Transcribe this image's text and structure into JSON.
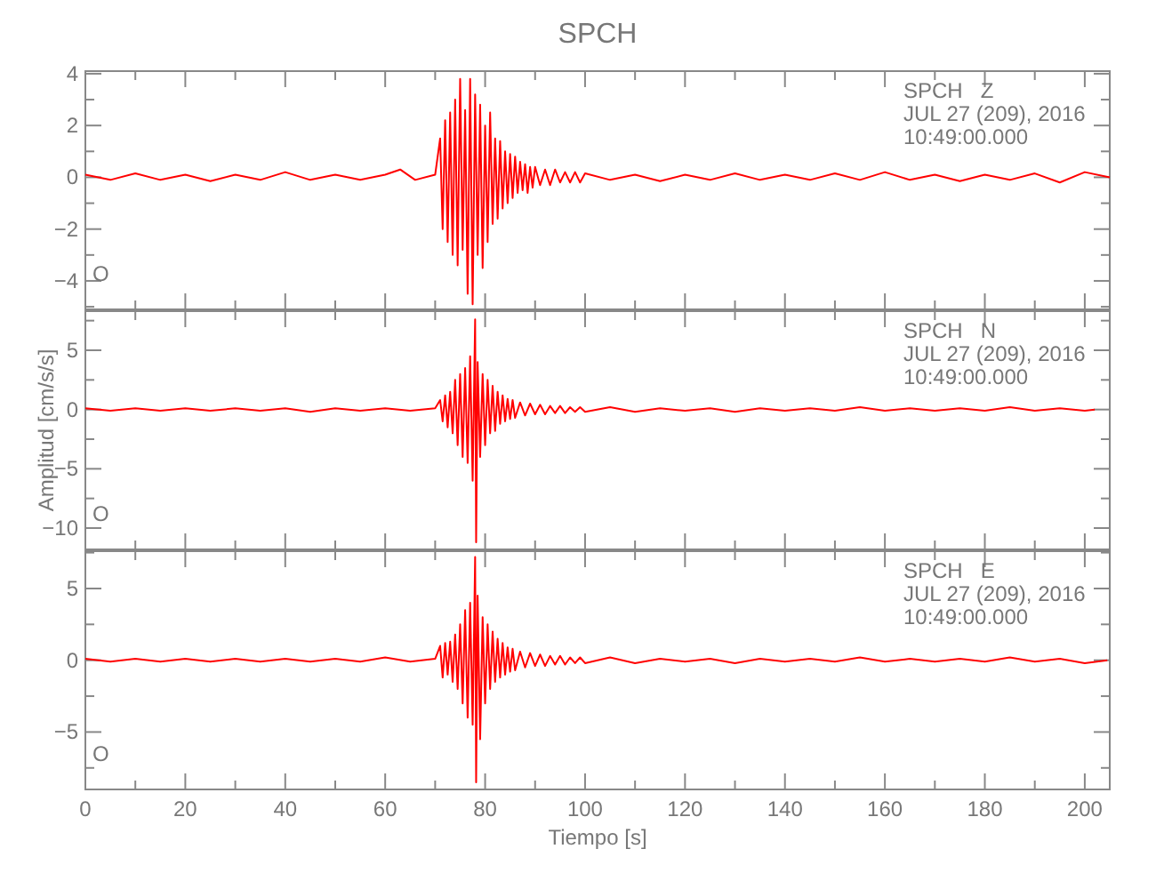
{
  "chart_data": [
    {
      "type": "line",
      "title": "SPCH",
      "xlim": [
        0,
        205
      ],
      "ylim": [
        -5.1,
        4.1
      ],
      "tick_labels": "y",
      "grid": false,
      "xticks": [
        0,
        {
          "value": 10,
          "label": null
        },
        20,
        {
          "value": 30,
          "label": null
        },
        40,
        {
          "value": 50,
          "label": null
        },
        60,
        {
          "value": 70,
          "label": null
        },
        80,
        {
          "value": 90,
          "label": null
        },
        100,
        {
          "value": 110,
          "label": null
        },
        120,
        {
          "value": 130,
          "label": null
        },
        140,
        {
          "value": 150,
          "label": null
        },
        160,
        {
          "value": 170,
          "label": null
        },
        180,
        {
          "value": 190,
          "label": null
        },
        200
      ],
      "yticks": [
        {
          "value": -5,
          "label": null
        },
        -4,
        {
          "value": -3,
          "label": null
        },
        -2,
        {
          "value": -1,
          "label": null
        },
        0,
        {
          "value": 1,
          "label": null
        },
        2,
        {
          "value": 3,
          "label": null
        },
        4
      ],
      "annotations": [
        "SPCH   Z",
        "JUL 27 (209), 2016",
        "10:49:00.000",
        "O"
      ],
      "series": [
        {
          "color": "#ff0000",
          "x": [
            0,
            5,
            10,
            15,
            20,
            25,
            30,
            35,
            40,
            45,
            50,
            55,
            60,
            63,
            66,
            70,
            71,
            71.5,
            72,
            72.5,
            73,
            73.5,
            74,
            74.5,
            75,
            75.5,
            76,
            76.5,
            77,
            77.5,
            78,
            78.5,
            79,
            79.5,
            80,
            80.5,
            81,
            81.5,
            82,
            82.5,
            83,
            83.5,
            84,
            84.5,
            85,
            85.5,
            86,
            86.5,
            87,
            87.5,
            88,
            88.5,
            89,
            89.5,
            90,
            91,
            92,
            93,
            94,
            95,
            96,
            97,
            98,
            99,
            100,
            105,
            110,
            115,
            120,
            125,
            130,
            135,
            140,
            145,
            150,
            155,
            160,
            165,
            170,
            175,
            180,
            185,
            190,
            195,
            200,
            205
          ],
          "values": [
            0.1,
            -0.1,
            0.15,
            -0.1,
            0.1,
            -0.15,
            0.1,
            -0.1,
            0.2,
            -0.1,
            0.1,
            -0.1,
            0.1,
            0.3,
            -0.1,
            0.1,
            1.5,
            -2.0,
            2.2,
            -2.5,
            2.5,
            -3.0,
            3.0,
            -3.4,
            3.8,
            -2.8,
            2.6,
            -4.5,
            3.8,
            -4.9,
            3.2,
            -3.0,
            2.8,
            -3.5,
            2.0,
            -2.5,
            2.5,
            -1.8,
            1.5,
            -1.6,
            1.4,
            -1.2,
            1.0,
            -1.0,
            0.9,
            -0.8,
            0.8,
            -0.6,
            0.6,
            -0.5,
            0.5,
            -0.6,
            0.4,
            -0.4,
            0.4,
            -0.3,
            0.3,
            -0.3,
            0.3,
            -0.2,
            0.2,
            -0.2,
            0.2,
            -0.2,
            0.15,
            -0.1,
            0.1,
            -0.15,
            0.1,
            -0.1,
            0.15,
            -0.1,
            0.1,
            -0.1,
            0.15,
            -0.1,
            0.2,
            -0.1,
            0.1,
            -0.15,
            0.1,
            -0.1,
            0.15,
            -0.2,
            0.2,
            0
          ]
        }
      ]
    },
    {
      "type": "line",
      "ylabel": "Amplitud [cm/s/s]",
      "xlim": [
        0,
        205
      ],
      "ylim": [
        -11.8,
        8.3
      ],
      "tick_labels": "y",
      "grid": false,
      "xticks": [
        0,
        {
          "value": 10,
          "label": null
        },
        20,
        {
          "value": 30,
          "label": null
        },
        40,
        {
          "value": 50,
          "label": null
        },
        60,
        {
          "value": 70,
          "label": null
        },
        80,
        {
          "value": 90,
          "label": null
        },
        100,
        {
          "value": 110,
          "label": null
        },
        120,
        {
          "value": 130,
          "label": null
        },
        140,
        {
          "value": 150,
          "label": null
        },
        160,
        {
          "value": 170,
          "label": null
        },
        180,
        {
          "value": 190,
          "label": null
        },
        200
      ],
      "yticks": [
        -10,
        {
          "value": -7.5,
          "label": null
        },
        -5,
        {
          "value": -2.5,
          "label": null
        },
        0,
        {
          "value": 2.5,
          "label": null
        },
        5,
        {
          "value": 7.5,
          "label": null
        }
      ],
      "annotations": [
        "SPCH   N",
        "JUL 27 (209), 2016",
        "10:49:00.000",
        "O"
      ],
      "series": [
        {
          "color": "#ff0000",
          "x": [
            0,
            5,
            10,
            15,
            20,
            25,
            30,
            35,
            40,
            45,
            50,
            55,
            60,
            65,
            70,
            71,
            71.5,
            72,
            72.5,
            73,
            73.5,
            74,
            74.5,
            75,
            75.5,
            76,
            76.5,
            77,
            77.5,
            78,
            78.2,
            78.5,
            79,
            79.5,
            80,
            80.5,
            81,
            81.5,
            82,
            82.5,
            83,
            83.5,
            84,
            84.5,
            85,
            85.5,
            86,
            87,
            88,
            89,
            90,
            91,
            92,
            93,
            94,
            95,
            96,
            97,
            98,
            99,
            100,
            105,
            110,
            115,
            120,
            125,
            130,
            135,
            140,
            145,
            150,
            155,
            160,
            165,
            170,
            175,
            180,
            185,
            190,
            195,
            200,
            202
          ],
          "values": [
            0.1,
            -0.1,
            0.1,
            -0.1,
            0.1,
            -0.1,
            0.1,
            -0.1,
            0.1,
            -0.2,
            0.1,
            -0.1,
            0.1,
            -0.1,
            0.1,
            0.8,
            -1.0,
            1.2,
            -1.5,
            1.5,
            -2.0,
            2.5,
            -3.0,
            3.0,
            -4.0,
            3.5,
            -4.5,
            4.5,
            -6.0,
            7.6,
            -11.2,
            4.0,
            -4.0,
            3.0,
            -3.0,
            2.5,
            -2.0,
            2.0,
            -1.8,
            1.5,
            -1.2,
            1.2,
            -1.0,
            0.9,
            -0.8,
            0.8,
            -0.7,
            0.6,
            -0.5,
            0.5,
            -0.4,
            0.4,
            -0.4,
            0.3,
            -0.3,
            0.3,
            -0.3,
            0.2,
            -0.2,
            0.2,
            -0.2,
            0.2,
            -0.2,
            0.1,
            -0.1,
            0.1,
            -0.2,
            0.1,
            -0.1,
            0.1,
            -0.1,
            0.2,
            -0.1,
            0.1,
            -0.1,
            0.1,
            -0.1,
            0.2,
            -0.1,
            0.1,
            -0.1,
            0
          ]
        }
      ]
    },
    {
      "type": "line",
      "xlabel": "Tiempo [s]",
      "xlim": [
        0,
        205
      ],
      "ylim": [
        -9.0,
        7.6
      ],
      "grid": false,
      "xticks": [
        0,
        {
          "value": 10,
          "label": null
        },
        20,
        {
          "value": 30,
          "label": null
        },
        40,
        {
          "value": 50,
          "label": null
        },
        60,
        {
          "value": 70,
          "label": null
        },
        80,
        {
          "value": 90,
          "label": null
        },
        100,
        {
          "value": 110,
          "label": null
        },
        120,
        {
          "value": 130,
          "label": null
        },
        140,
        {
          "value": 150,
          "label": null
        },
        160,
        {
          "value": 170,
          "label": null
        },
        180,
        {
          "value": 190,
          "label": null
        },
        200
      ],
      "yticks": [
        {
          "value": -7.5,
          "label": null
        },
        -5,
        {
          "value": -2.5,
          "label": null
        },
        0,
        {
          "value": 2.5,
          "label": null
        },
        5,
        {
          "value": 7.5,
          "label": null
        }
      ],
      "annotations": [
        "SPCH   E",
        "JUL 27 (209), 2016",
        "10:49:00.000",
        "O"
      ],
      "series": [
        {
          "color": "#ff0000",
          "x": [
            0,
            5,
            10,
            15,
            20,
            25,
            30,
            35,
            40,
            45,
            50,
            55,
            60,
            65,
            70,
            71,
            71.5,
            72,
            72.5,
            73,
            73.5,
            74,
            74.5,
            75,
            75.5,
            76,
            76.5,
            77,
            77.5,
            78,
            78.2,
            78.5,
            79,
            79.5,
            80,
            80.5,
            81,
            81.5,
            82,
            82.5,
            83,
            83.5,
            84,
            84.5,
            85,
            85.5,
            86,
            87,
            88,
            89,
            90,
            91,
            92,
            93,
            94,
            95,
            96,
            97,
            98,
            99,
            100,
            105,
            110,
            115,
            120,
            125,
            130,
            135,
            140,
            145,
            150,
            155,
            160,
            165,
            170,
            175,
            180,
            185,
            190,
            195,
            200,
            204.5
          ],
          "values": [
            0.1,
            -0.1,
            0.1,
            -0.1,
            0.1,
            -0.1,
            0.1,
            -0.1,
            0.1,
            -0.1,
            0.1,
            -0.1,
            0.2,
            -0.1,
            0.1,
            1.0,
            -1.2,
            1.2,
            -1.0,
            1.3,
            -1.5,
            1.8,
            -2.0,
            2.5,
            -3.0,
            3.5,
            -4.0,
            4.0,
            -4.5,
            7.2,
            -8.5,
            4.5,
            -5.5,
            3.0,
            -3.0,
            2.5,
            -2.0,
            2.0,
            -1.5,
            1.5,
            -1.2,
            1.2,
            -1.0,
            0.9,
            -0.8,
            0.8,
            -0.7,
            0.6,
            -0.5,
            0.5,
            -0.4,
            0.4,
            -0.4,
            0.3,
            -0.3,
            0.3,
            -0.3,
            0.2,
            -0.2,
            0.2,
            -0.2,
            0.2,
            -0.2,
            0.1,
            -0.1,
            0.1,
            -0.2,
            0.1,
            -0.1,
            0.1,
            -0.1,
            0.2,
            -0.1,
            0.1,
            -0.1,
            0.1,
            -0.1,
            0.2,
            -0.1,
            0.1,
            -0.2,
            0
          ]
        }
      ]
    }
  ]
}
